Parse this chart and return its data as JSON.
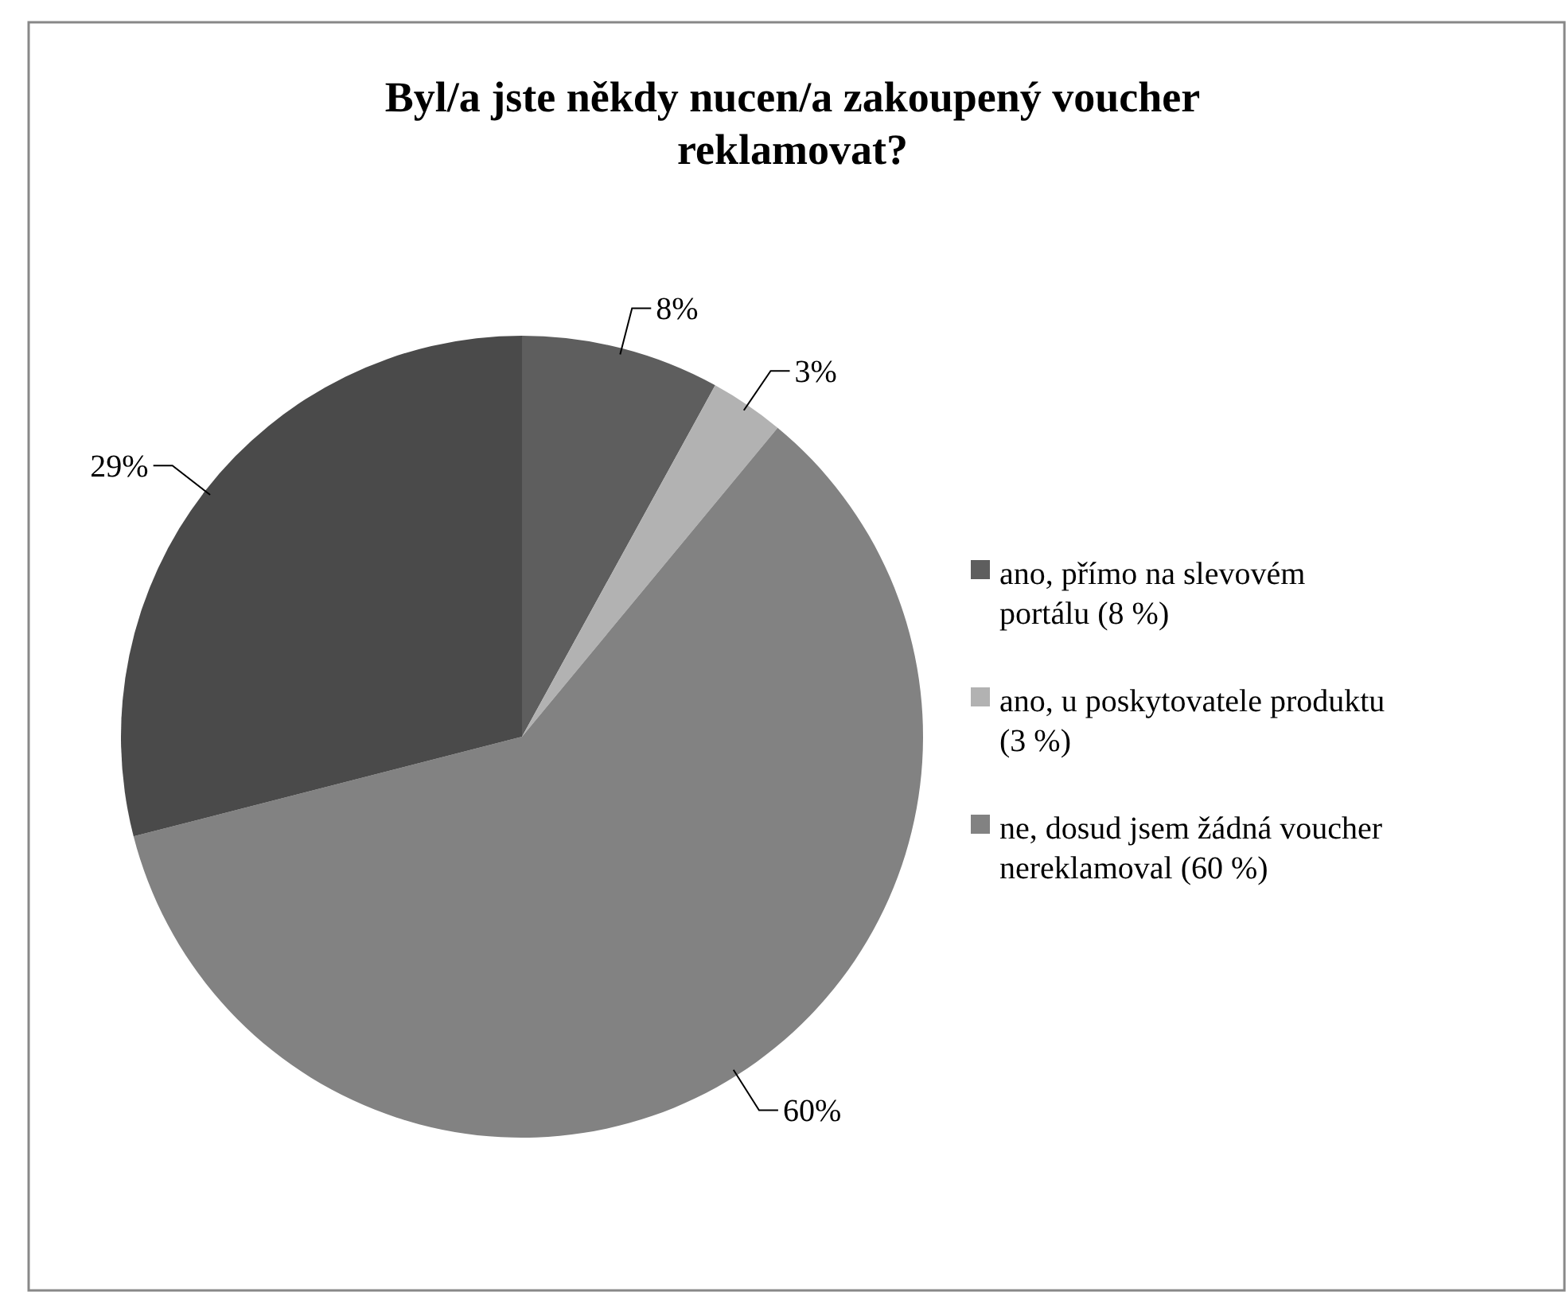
{
  "chart_data": {
    "type": "pie",
    "title": "Byl/a jste někdy nucen/a zakoupený voucher reklamovat?",
    "categories": [
      "ano, přímo na slevovém portálu (8 %)",
      "ano, u poskytovatele produktu (3 %)",
      "ne, dosud jsem žádná voucher nereklamoval (60 %)",
      null
    ],
    "values": [
      8,
      3,
      60,
      29
    ],
    "colors": [
      "#5e5e5e",
      "#b2b2b2",
      "#828282",
      "#4a4a4a"
    ],
    "value_labels": [
      "8%",
      "3%",
      "60%",
      "29%"
    ],
    "legend": "right"
  }
}
